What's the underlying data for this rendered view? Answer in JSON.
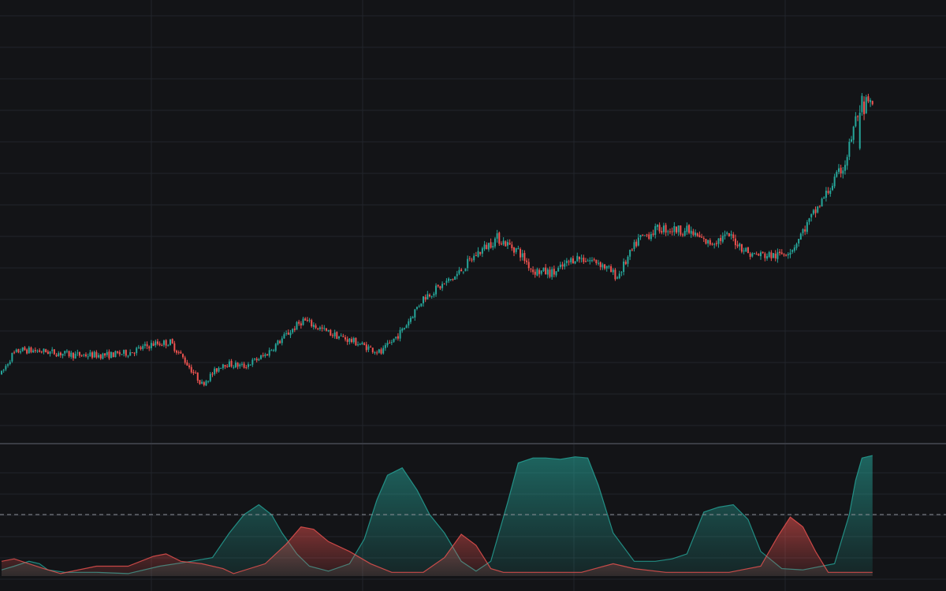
{
  "colors": {
    "background": "#131417",
    "grid": "#22252b",
    "separator": "#3a3d44",
    "bullish": "#26a69a",
    "bearish": "#ef5350",
    "threshold_line": "#8a8d94"
  },
  "chart_data": [
    {
      "type": "candlestick",
      "panel": "price",
      "grid": true,
      "title": "",
      "xlabel": "",
      "ylabel": "",
      "ylim": [
        0,
        560
      ],
      "waypoints": [
        {
          "i": 0,
          "p": 80
        },
        {
          "i": 5,
          "p": 105
        },
        {
          "i": 9,
          "p": 112
        },
        {
          "i": 20,
          "p": 110
        },
        {
          "i": 35,
          "p": 105
        },
        {
          "i": 50,
          "p": 105
        },
        {
          "i": 60,
          "p": 108
        },
        {
          "i": 72,
          "p": 120
        },
        {
          "i": 80,
          "p": 122
        },
        {
          "i": 85,
          "p": 105
        },
        {
          "i": 95,
          "p": 66
        },
        {
          "i": 105,
          "p": 94
        },
        {
          "i": 115,
          "p": 90
        },
        {
          "i": 125,
          "p": 105
        },
        {
          "i": 135,
          "p": 132
        },
        {
          "i": 143,
          "p": 152
        },
        {
          "i": 155,
          "p": 135
        },
        {
          "i": 168,
          "p": 122
        },
        {
          "i": 180,
          "p": 108
        },
        {
          "i": 190,
          "p": 138
        },
        {
          "i": 200,
          "p": 182
        },
        {
          "i": 215,
          "p": 210
        },
        {
          "i": 225,
          "p": 240
        },
        {
          "i": 235,
          "p": 262
        },
        {
          "i": 245,
          "p": 245
        },
        {
          "i": 252,
          "p": 218
        },
        {
          "i": 262,
          "p": 215
        },
        {
          "i": 272,
          "p": 236
        },
        {
          "i": 283,
          "p": 230
        },
        {
          "i": 292,
          "p": 210
        },
        {
          "i": 302,
          "p": 260
        },
        {
          "i": 312,
          "p": 275
        },
        {
          "i": 325,
          "p": 272
        },
        {
          "i": 335,
          "p": 255
        },
        {
          "i": 345,
          "p": 265
        },
        {
          "i": 355,
          "p": 240
        },
        {
          "i": 368,
          "p": 238
        },
        {
          "i": 375,
          "p": 248
        },
        {
          "i": 382,
          "p": 280
        },
        {
          "i": 392,
          "p": 325
        },
        {
          "i": 400,
          "p": 362
        },
        {
          "i": 405,
          "p": 420
        },
        {
          "i": 408,
          "p": 445
        },
        {
          "i": 413,
          "p": 440
        }
      ],
      "big_moves": [
        {
          "i": 407,
          "open": 382,
          "close": 430,
          "high": 440,
          "low": 380
        },
        {
          "i": 409,
          "open": 445,
          "close": 428,
          "high": 452,
          "low": 420
        }
      ]
    },
    {
      "type": "area",
      "panel": "indicator",
      "grid": true,
      "ylim": [
        0,
        100
      ],
      "threshold": 50,
      "series": [
        {
          "color_key": "bullish",
          "points": [
            [
              0,
              5
            ],
            [
              6,
              8
            ],
            [
              13,
              12
            ],
            [
              18,
              10
            ],
            [
              22,
              5
            ],
            [
              30,
              3
            ],
            [
              45,
              3
            ],
            [
              60,
              2
            ],
            [
              75,
              8
            ],
            [
              90,
              12
            ],
            [
              100,
              15
            ],
            [
              108,
              35
            ],
            [
              115,
              50
            ],
            [
              122,
              58
            ],
            [
              128,
              50
            ],
            [
              133,
              35
            ],
            [
              140,
              18
            ],
            [
              146,
              8
            ],
            [
              155,
              4
            ],
            [
              165,
              10
            ],
            [
              172,
              30
            ],
            [
              178,
              62
            ],
            [
              183,
              82
            ],
            [
              190,
              88
            ],
            [
              197,
              70
            ],
            [
              203,
              50
            ],
            [
              210,
              35
            ],
            [
              218,
              12
            ],
            [
              225,
              4
            ],
            [
              232,
              12
            ],
            [
              240,
              60
            ],
            [
              245,
              92
            ],
            [
              252,
              96
            ],
            [
              258,
              96
            ],
            [
              265,
              95
            ],
            [
              272,
              97
            ],
            [
              278,
              96
            ],
            [
              283,
              74
            ],
            [
              290,
              35
            ],
            [
              300,
              12
            ],
            [
              310,
              12
            ],
            [
              318,
              14
            ],
            [
              325,
              18
            ],
            [
              333,
              52
            ],
            [
              340,
              56
            ],
            [
              347,
              58
            ],
            [
              354,
              46
            ],
            [
              360,
              20
            ],
            [
              370,
              6
            ],
            [
              380,
              5
            ],
            [
              395,
              10
            ],
            [
              402,
              50
            ],
            [
              405,
              78
            ],
            [
              408,
              96
            ],
            [
              413,
              98
            ]
          ]
        },
        {
          "color_key": "bearish",
          "points": [
            [
              0,
              12
            ],
            [
              6,
              14
            ],
            [
              13,
              10
            ],
            [
              20,
              6
            ],
            [
              28,
              2
            ],
            [
              45,
              8
            ],
            [
              60,
              8
            ],
            [
              72,
              16
            ],
            [
              78,
              18
            ],
            [
              85,
              12
            ],
            [
              95,
              10
            ],
            [
              105,
              6
            ],
            [
              110,
              2
            ],
            [
              125,
              10
            ],
            [
              135,
              26
            ],
            [
              142,
              40
            ],
            [
              148,
              38
            ],
            [
              155,
              28
            ],
            [
              165,
              20
            ],
            [
              175,
              10
            ],
            [
              185,
              3
            ],
            [
              200,
              3
            ],
            [
              210,
              15
            ],
            [
              218,
              34
            ],
            [
              225,
              25
            ],
            [
              232,
              6
            ],
            [
              238,
              3
            ],
            [
              260,
              3
            ],
            [
              275,
              3
            ],
            [
              290,
              10
            ],
            [
              300,
              6
            ],
            [
              315,
              3
            ],
            [
              330,
              3
            ],
            [
              345,
              3
            ],
            [
              360,
              8
            ],
            [
              368,
              32
            ],
            [
              374,
              48
            ],
            [
              380,
              40
            ],
            [
              386,
              20
            ],
            [
              392,
              3
            ],
            [
              413,
              3
            ]
          ]
        }
      ]
    }
  ]
}
